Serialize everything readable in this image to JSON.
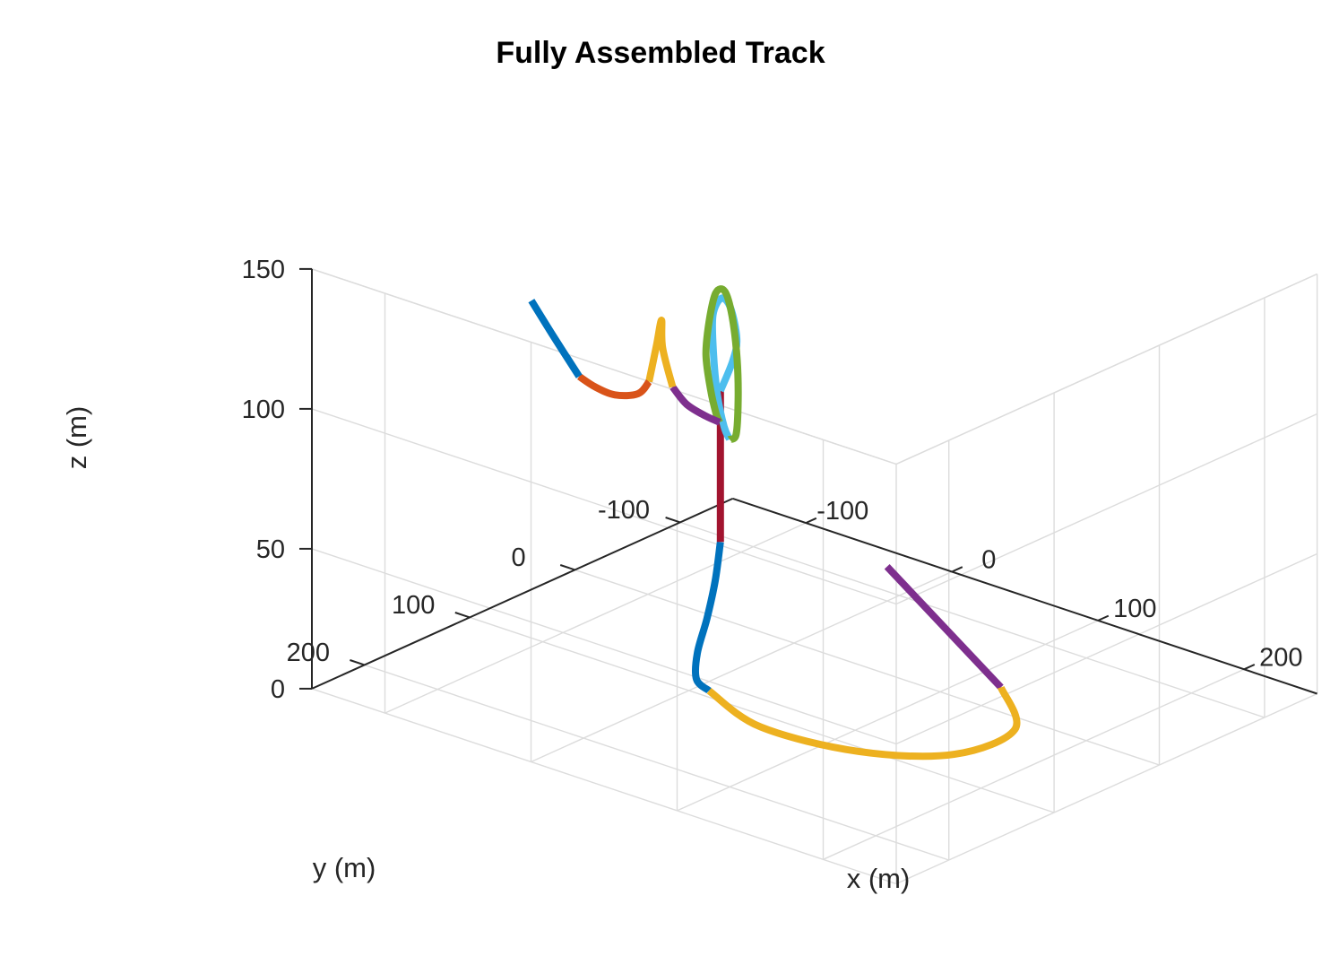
{
  "chart_data": {
    "type": "line3d",
    "title": "Fully Assembled Track",
    "xlabel": "x (m)",
    "ylabel": "y (m)",
    "zlabel": "z (m)",
    "xlim": [
      -150,
      250
    ],
    "ylim": [
      -150,
      250
    ],
    "zlim": [
      0,
      150
    ],
    "xticks": [
      -100,
      0,
      100,
      200
    ],
    "yticks": [
      -100,
      0,
      100,
      200
    ],
    "zticks": [
      0,
      50,
      100,
      150
    ],
    "xtick_labels": [
      "-100",
      "0",
      "100",
      "200"
    ],
    "ytick_labels": [
      "-100",
      "0",
      "100",
      "200"
    ],
    "ztick_labels": [
      "0",
      "50",
      "100",
      "150"
    ],
    "grid": true,
    "box": false,
    "view": "3d-isometric",
    "segments": [
      {
        "color": "#7E2F8E",
        "points": [
          [
            -30,
            -130,
            0
          ],
          [
            120,
            -30,
            0
          ]
        ]
      },
      {
        "color": "#EDB120",
        "points": [
          [
            120,
            -30,
            0
          ],
          [
            162,
            15,
            0
          ],
          [
            160,
            70,
            0
          ],
          [
            120,
            105,
            0
          ],
          [
            60,
            115,
            0
          ],
          [
            8,
            92,
            0
          ]
        ]
      },
      {
        "color": "#0072BD",
        "points": [
          [
            8,
            92,
            0
          ],
          [
            -2,
            90,
            2
          ],
          [
            -5,
            85,
            10
          ],
          [
            -2,
            80,
            22
          ],
          [
            0,
            75,
            35
          ],
          [
            0,
            70,
            48
          ]
        ]
      },
      {
        "color": "#A2142F",
        "points": [
          [
            0,
            70,
            48
          ],
          [
            0,
            70,
            102
          ]
        ]
      },
      {
        "color": "#4DBEEE",
        "points": [
          [
            0,
            70,
            102
          ],
          [
            15,
            79,
            117
          ],
          [
            22,
            85,
            127
          ],
          [
            17,
            84,
            137
          ],
          [
            5,
            76,
            137
          ],
          [
            -8,
            66,
            127
          ],
          [
            -12,
            60,
            112
          ],
          [
            -10,
            59,
            97
          ],
          [
            -4,
            61,
            87
          ],
          [
            2,
            64,
            84
          ]
        ]
      },
      {
        "color": "#77AC30",
        "points": [
          [
            2,
            64,
            84
          ],
          [
            10,
            69,
            88
          ],
          [
            15,
            74,
            102
          ],
          [
            15,
            75,
            117
          ],
          [
            8,
            70,
            130
          ],
          [
            -2,
            63,
            136
          ],
          [
            -14,
            55,
            132
          ],
          [
            -22,
            50,
            120
          ],
          [
            -25,
            49,
            107
          ],
          [
            -21,
            50,
            95
          ],
          [
            -15,
            53,
            88
          ],
          [
            -12,
            54,
            86
          ]
        ]
      },
      {
        "color": "#7E2F8E",
        "points": [
          [
            -12,
            54,
            86
          ],
          [
            -18,
            59,
            88
          ],
          [
            -26,
            66,
            92
          ],
          [
            -32,
            71,
            98
          ]
        ]
      },
      {
        "color": "#EDB120",
        "points": [
          [
            -32,
            71,
            98
          ],
          [
            -36,
            75,
            112
          ],
          [
            -36,
            76,
            122
          ],
          [
            -38,
            78,
            113
          ],
          [
            -41,
            81,
            100
          ]
        ]
      },
      {
        "color": "#D95319",
        "points": [
          [
            -41,
            81,
            100
          ],
          [
            -47,
            83,
            95
          ],
          [
            -60,
            87,
            93
          ],
          [
            -70,
            92,
            95
          ],
          [
            -78,
            96,
            98
          ]
        ]
      },
      {
        "color": "#0072BD",
        "points": [
          [
            -78,
            96,
            98
          ],
          [
            -88,
            106,
            112
          ],
          [
            -97,
            115,
            125
          ]
        ]
      }
    ]
  }
}
